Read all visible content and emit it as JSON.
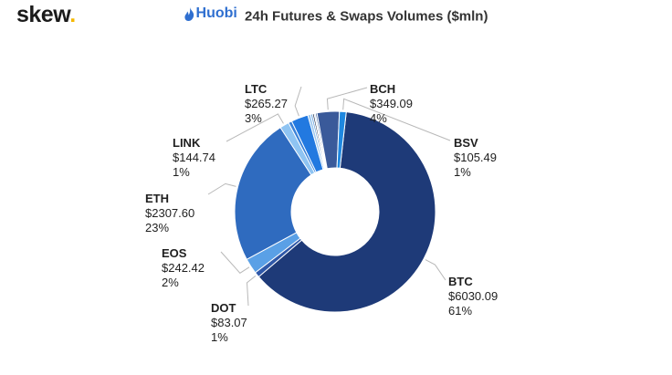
{
  "header": {
    "brand_text": "skew",
    "brand_dot": ".",
    "exchange_logo": "Huobi",
    "exchange_icon": "flame-icon",
    "title": "24h Futures & Swaps Volumes ($mln)"
  },
  "chart_data": {
    "type": "pie",
    "variant": "donut",
    "title": "24h Futures & Swaps Volumes ($mln)",
    "slices": [
      {
        "name": "BTC",
        "value_label": "$6030.09",
        "pct_label": "61%",
        "value": 6030.09,
        "color": "#1e3a78",
        "labeled": true
      },
      {
        "name": "DOT",
        "value_label": "$83.07",
        "pct_label": "1%",
        "value": 83.07,
        "color": "#2f58a8",
        "labeled": true
      },
      {
        "name": "EOS",
        "value_label": "$242.42",
        "pct_label": "2%",
        "value": 242.42,
        "color": "#5aa0e6",
        "labeled": true
      },
      {
        "name": "ETH",
        "value_label": "$2307.60",
        "pct_label": "23%",
        "value": 2307.6,
        "color": "#2f6bbf",
        "labeled": true
      },
      {
        "name": "LINK",
        "value_label": "$144.74",
        "pct_label": "1%",
        "value": 144.74,
        "color": "#8fc4f2",
        "labeled": true
      },
      {
        "name": "",
        "value_label": "",
        "pct_label": "",
        "value": 55,
        "color": "#3b82d8",
        "labeled": false
      },
      {
        "name": "LTC",
        "value_label": "$265.27",
        "pct_label": "3%",
        "value": 265.27,
        "color": "#2279e0",
        "labeled": true
      },
      {
        "name": "",
        "value_label": "",
        "pct_label": "",
        "value": 45,
        "color": "#9ec8ee",
        "labeled": false
      },
      {
        "name": "",
        "value_label": "",
        "pct_label": "",
        "value": 30,
        "color": "#6fa8e0",
        "labeled": false
      },
      {
        "name": "",
        "value_label": "",
        "pct_label": "",
        "value": 25,
        "color": "#1a2540",
        "labeled": false
      },
      {
        "name": "",
        "value_label": "",
        "pct_label": "",
        "value": 20,
        "color": "#c9def2",
        "labeled": false
      },
      {
        "name": "",
        "value_label": "",
        "pct_label": "",
        "value": 25,
        "color": "#4a6fa8",
        "labeled": false
      },
      {
        "name": "BCH",
        "value_label": "$349.09",
        "pct_label": "4%",
        "value": 349.09,
        "color": "#3a5a9a",
        "labeled": true
      },
      {
        "name": "BSV",
        "value_label": "$105.49",
        "pct_label": "1%",
        "value": 105.49,
        "color": "#1f88e0",
        "labeled": true
      }
    ]
  }
}
